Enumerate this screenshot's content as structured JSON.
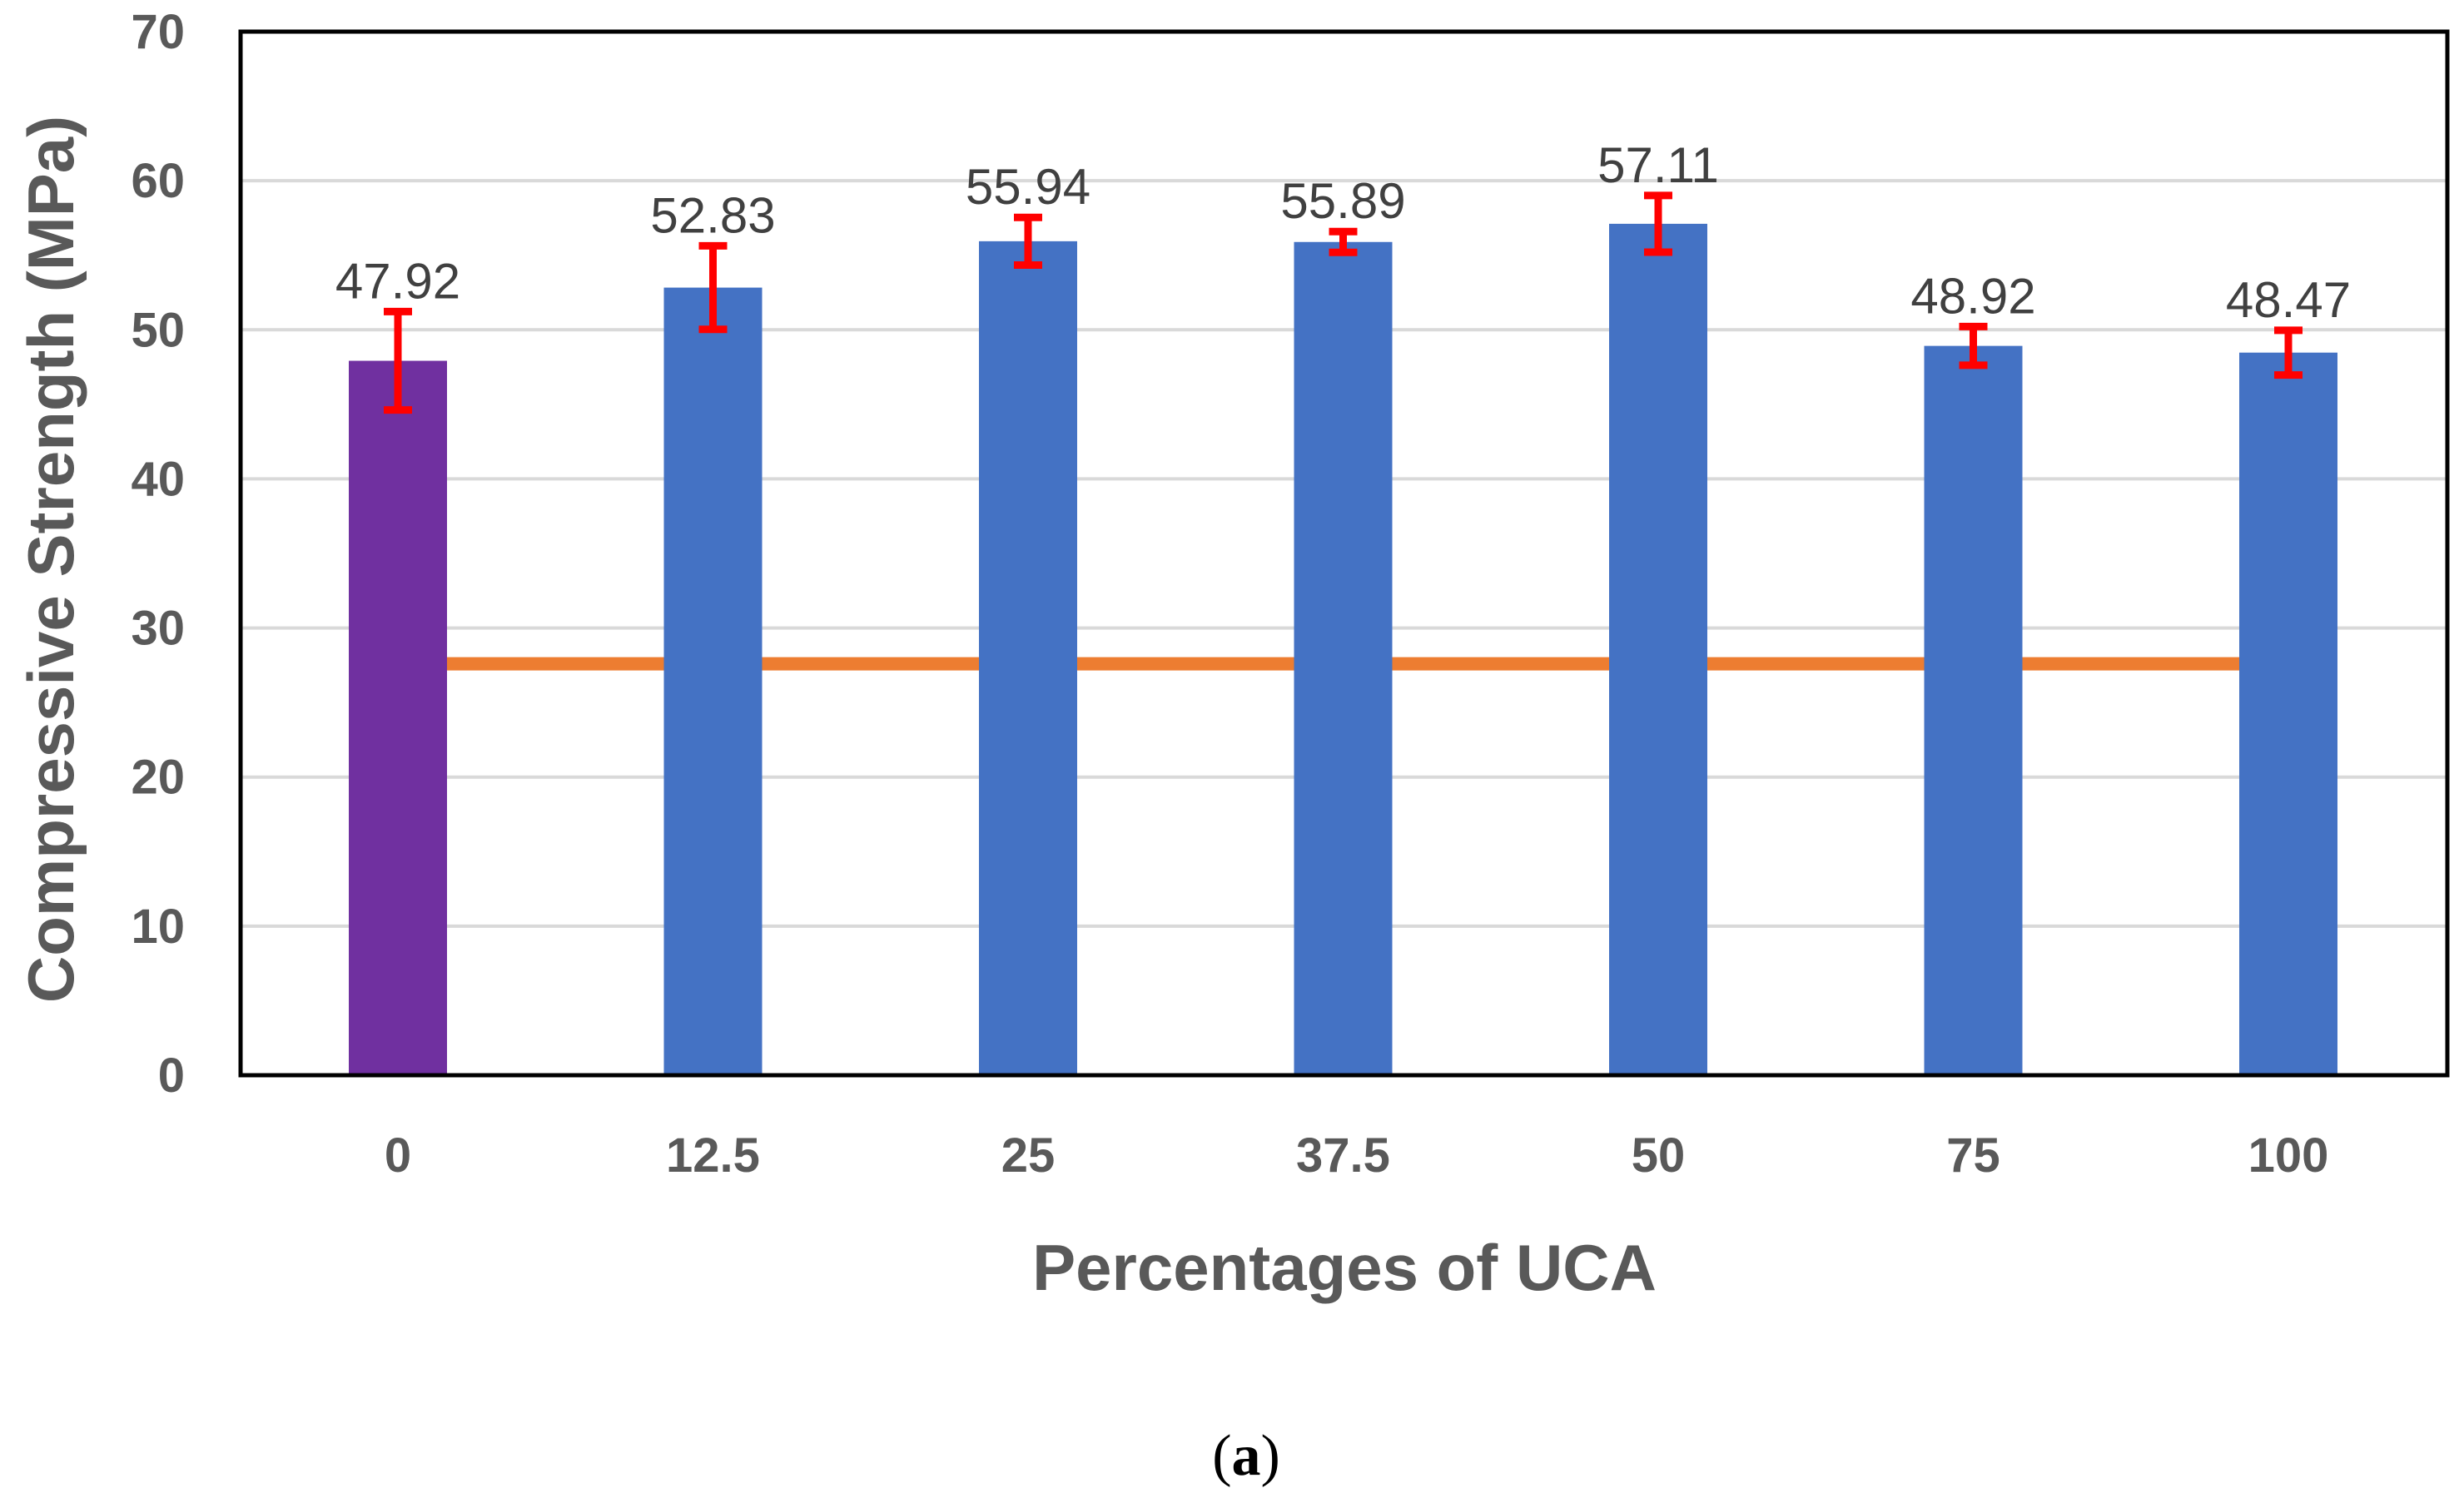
{
  "chart_data": {
    "type": "bar",
    "title": "",
    "xlabel": "Percentages of UCA",
    "ylabel": "Compressive Strength (MPa)",
    "categories": [
      "0",
      "12.5",
      "25",
      "37.5",
      "50",
      "75",
      "100"
    ],
    "values": [
      47.92,
      52.83,
      55.94,
      55.89,
      57.11,
      48.92,
      48.47
    ],
    "value_labels": [
      "47.92",
      "52.83",
      "55.94",
      "55.89",
      "57.11",
      "48.92",
      "48.47"
    ],
    "error": [
      3.3,
      2.8,
      1.6,
      0.7,
      1.9,
      1.3,
      1.5
    ],
    "ylim": [
      0,
      70
    ],
    "yticks": [
      0,
      10,
      20,
      30,
      40,
      50,
      60,
      70
    ],
    "ytick_labels": [
      "0",
      "10",
      "20",
      "30",
      "40",
      "50",
      "60",
      "70"
    ],
    "grid": true,
    "reference_line": {
      "value": 27.6,
      "color": "#ED7D31"
    },
    "colors": {
      "control_bar": "#7030A0",
      "bar": "#4472C4",
      "error_bar": "#FF0000",
      "grid": "#D9D9D9",
      "axis": "#000000"
    }
  },
  "caption": {
    "open": "(",
    "letter": "a",
    "close": ")"
  }
}
